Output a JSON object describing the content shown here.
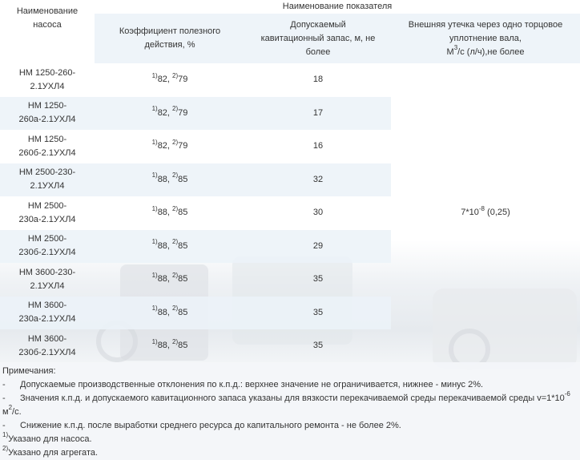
{
  "header": {
    "col_name": "Наименование насоса",
    "group": "Наименование показателя",
    "efficiency": "Коэффициент полезного действия, %",
    "cavitation": "Допускаемый кавитационный запас, м, не более",
    "leak_line1": "Внешняя утечка через одно торцовое уплотнение вала,",
    "leak_unit_base": "М",
    "leak_unit_sup": "3",
    "leak_unit_rest": "/с (л/ч),не более"
  },
  "rows": [
    {
      "name": "НМ 1250-260-2.1УХЛ4",
      "eff_a": "82,",
      "eff_b": "79",
      "cav": "18"
    },
    {
      "name": "НМ 1250-260а-2.1УХЛ4",
      "eff_a": "82,",
      "eff_b": "79",
      "cav": "17"
    },
    {
      "name": "НМ 1250-260б-2.1УХЛ4",
      "eff_a": "82,",
      "eff_b": "79",
      "cav": "16"
    },
    {
      "name": "НМ 2500-230-2.1УХЛ4",
      "eff_a": "88,",
      "eff_b": "85",
      "cav": "32"
    },
    {
      "name": "НМ 2500-230а-2.1УХЛ4",
      "eff_a": "88,",
      "eff_b": "85",
      "cav": "30"
    },
    {
      "name": "НМ 2500-230б-2.1УХЛ4",
      "eff_a": "88,",
      "eff_b": "85",
      "cav": "29"
    },
    {
      "name": "НМ 3600-230-2.1УХЛ4",
      "eff_a": "88,",
      "eff_b": "85",
      "cav": "35"
    },
    {
      "name": "НМ 3600-230а-2.1УХЛ4",
      "eff_a": "88,",
      "eff_b": "85",
      "cav": "35"
    },
    {
      "name": "НМ 3600-230б-2.1УХЛ4",
      "eff_a": "88,",
      "eff_b": "85",
      "cav": "35"
    }
  ],
  "sup1": "1)",
  "sup2": "2)",
  "leak_value_base": "7*10",
  "leak_value_exp": "-8",
  "leak_value_rest": " (0,25)",
  "notes": {
    "title": "Примечания:",
    "bullet": "-",
    "n1": "Допускаемые производственные отклонения по к.п.д.: верхнее значение не ограничивается, нижнее - минус 2%.",
    "n2_text": "Значения к.п.д. и допускаемого кавитационного запаса указаны для вязкости перекачиваемой среды перекачиваемой среды v=1*10",
    "n2_exp": "-6",
    "n2_unit_base": "м",
    "n2_unit_sup": "2",
    "n2_unit_rest": "/с.",
    "n3": "Снижение к.п.д. после выработки среднего ресурса до капитального ремонта - не более 2%.",
    "f1_sup": "1)",
    "f1_text": "Указано для насоса.",
    "f2_sup": "2)",
    "f2_text": "Указано для агрегата."
  }
}
